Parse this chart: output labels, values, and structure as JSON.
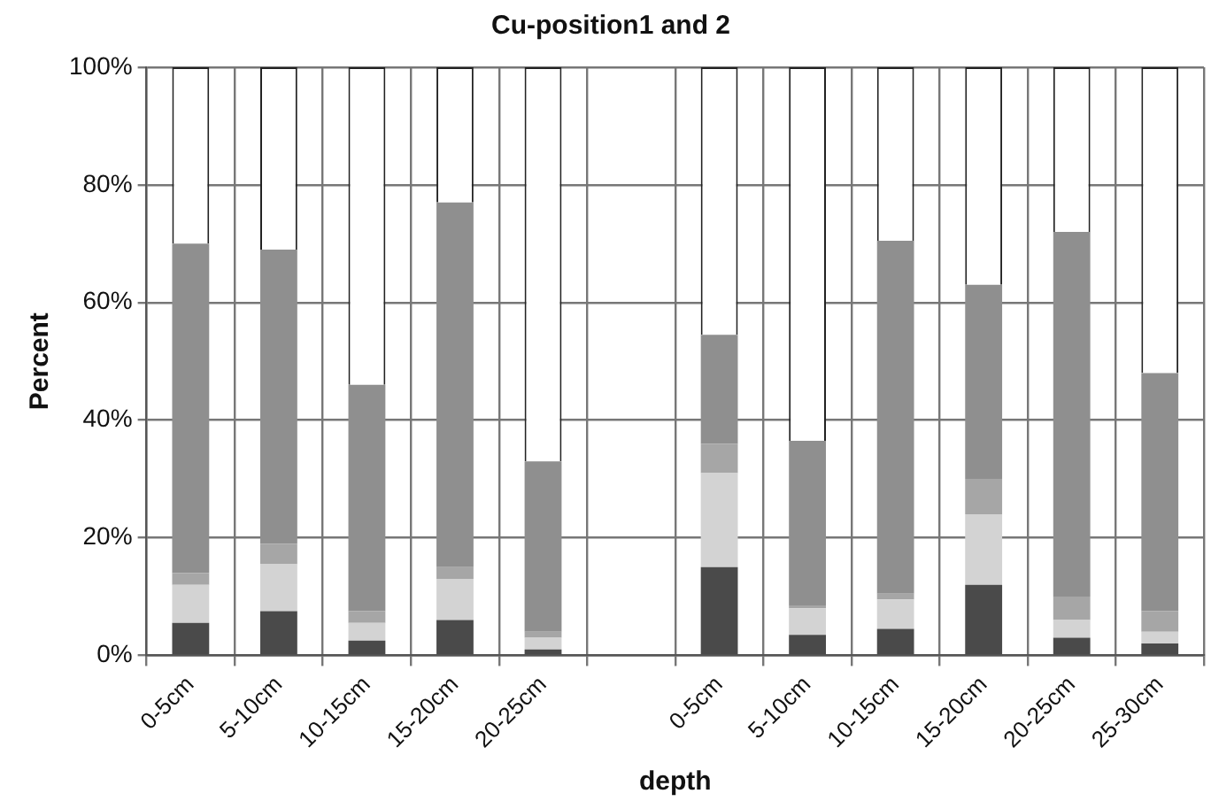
{
  "chart_data": {
    "type": "bar",
    "title": "Cu-position1 and 2",
    "xlabel": "depth",
    "ylabel": "Percent",
    "stacked": true,
    "grid": true,
    "legend": false,
    "categories": [
      "0-5cm",
      "5-10cm",
      "10-15cm",
      "15-20cm",
      "20-25cm",
      null,
      "0-5cm",
      "5-10cm",
      "10-15cm",
      "15-20cm",
      "20-25cm",
      "25-30cm"
    ],
    "ylim": [
      0,
      100
    ],
    "yticks": [
      {
        "value": 0,
        "label": "0%"
      },
      {
        "value": 20,
        "label": "20%"
      },
      {
        "value": 40,
        "label": "40%"
      },
      {
        "value": 60,
        "label": "60%"
      },
      {
        "value": 80,
        "label": "80%"
      },
      {
        "value": 100,
        "label": "100%"
      }
    ],
    "series": [
      {
        "color": "#4a4a4a",
        "values": [
          5.5,
          7.5,
          2.5,
          6,
          1,
          null,
          15,
          3.5,
          4.5,
          12,
          3,
          2
        ]
      },
      {
        "color": "#d3d3d3",
        "values": [
          6.5,
          8,
          3,
          7,
          2,
          null,
          16,
          4.5,
          5,
          12,
          3,
          2
        ]
      },
      {
        "color": "#a6a6a6",
        "values": [
          2,
          3.5,
          2,
          2,
          1,
          null,
          5,
          0.5,
          1,
          6,
          4,
          3.5
        ]
      },
      {
        "color": "#8f8f8f",
        "values": [
          56,
          50,
          38.5,
          62,
          29,
          null,
          18.5,
          28,
          60,
          33,
          62,
          40.5
        ]
      },
      {
        "color": "#ffffff",
        "values": [
          30,
          31,
          54,
          23,
          67,
          null,
          45.5,
          63.5,
          29.5,
          37,
          28,
          52
        ]
      }
    ]
  }
}
